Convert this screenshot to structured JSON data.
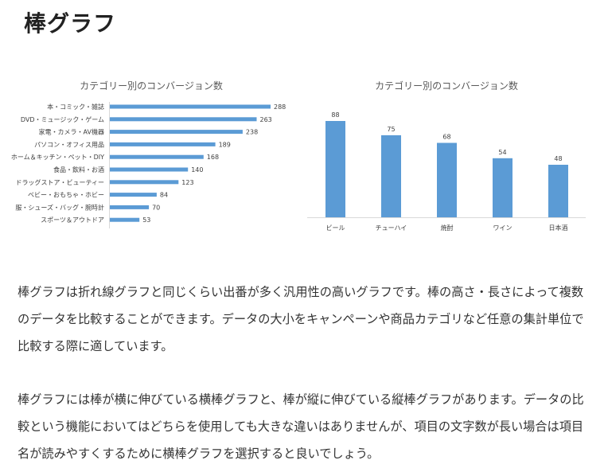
{
  "page": {
    "heading": "棒グラフ",
    "paragraphs": [
      "棒グラフは折れ線グラフと同じくらい出番が多く汎用性の高いグラフです。棒の高さ・長さによって複数のデータを比較することができます。データの大小をキャンペーンや商品カテゴリなど任意の集計単位で比較する際に適しています。",
      "棒グラフには棒が横に伸びている横棒グラフと、棒が縦に伸びている縦棒グラフがあります。データの比較という機能においてはどちらを使用しても大きな違いはありませんが、項目の文字数が長い場合は項目名が読みやすくするために横棒グラフを選択すると良いでしょう。"
    ]
  },
  "chart_data": [
    {
      "type": "bar",
      "orientation": "horizontal",
      "title": "カテゴリー別のコンバージョン数",
      "categories": [
        "本・コミック・雑誌",
        "DVD・ミュージック・ゲーム",
        "家電・カメラ・AV機器",
        "パソコン・オフィス用品",
        "ホーム＆キッチン・ペット・DIY",
        "食品・飲料・お酒",
        "ドラッグストア・ビューティー",
        "ベビー・おもちゃ・ホビー",
        "服・シューズ・バッグ・腕時計",
        "スポーツ＆アウトドア"
      ],
      "values": [
        288,
        263,
        238,
        189,
        168,
        140,
        123,
        84,
        70,
        53
      ],
      "data_labels": true,
      "grid": false,
      "color": "#5B9BD5"
    },
    {
      "type": "bar",
      "orientation": "vertical",
      "title": "カテゴリー別のコンバージョン数",
      "categories": [
        "ビール",
        "チューハイ",
        "焼酎",
        "ワイン",
        "日本酒"
      ],
      "values": [
        88,
        75,
        68,
        54,
        48
      ],
      "data_labels": true,
      "grid": false,
      "color": "#5B9BD5"
    }
  ]
}
